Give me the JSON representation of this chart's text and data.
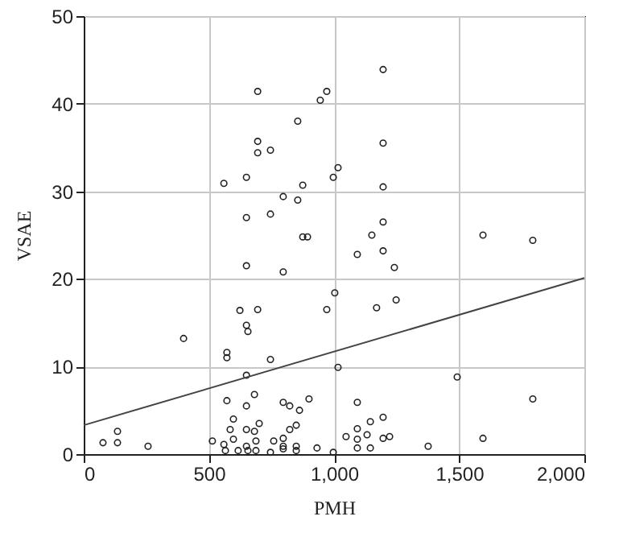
{
  "chart_data": {
    "type": "scatter",
    "xlabel": "PMH",
    "ylabel": "VSAE",
    "xlim": [
      0,
      2000
    ],
    "ylim": [
      0,
      50
    ],
    "xticks": [
      0,
      500,
      {
        "value": 1000,
        "label": "1,000"
      },
      {
        "value": 1500,
        "label": "1,500"
      },
      {
        "value": 2000,
        "label": "2,000"
      }
    ],
    "yticks": [
      0,
      10,
      20,
      30,
      40,
      50
    ],
    "grid": true,
    "series": [
      {
        "marker": "circle",
        "color": "#222222",
        "x": [
          695,
          971,
          945,
          855,
          695,
          695,
          746,
          997,
          1016,
          650,
          560,
          875,
          797,
          855,
          650,
          746,
          875,
          894,
          1196,
          1196,
          1196,
          1196,
          1151,
          1595,
          1794,
          650,
          797,
          1003,
          971,
          624,
          695,
          650,
          656,
          399,
          572,
          572,
          746,
          1016,
          650,
          572,
          682,
          650,
          797,
          823,
          862,
          900,
          598,
          701,
          849,
          823,
          585,
          650,
          682,
          135,
          77,
          135,
          257,
          514,
          560,
          598,
          650,
          688,
          759,
          797,
          797,
          849,
          932,
          997,
          566,
          617,
          656,
          688,
          746,
          797,
          849,
          1093,
          1196,
          1241,
          1248,
          1170,
          1492,
          1093,
          1794,
          1196,
          1145,
          1093,
          1048,
          1132,
          1196,
          1222,
          1093,
          1595,
          1376,
          1093,
          1145
        ],
        "values": [
          41.4,
          41.4,
          40.4,
          38.0,
          35.7,
          34.4,
          34.7,
          31.6,
          32.7,
          31.6,
          30.9,
          30.7,
          29.4,
          29.0,
          27.0,
          27.4,
          24.8,
          24.8,
          43.9,
          35.5,
          30.5,
          26.5,
          25.0,
          25.0,
          24.4,
          21.5,
          20.8,
          18.4,
          16.5,
          16.4,
          16.5,
          14.7,
          14.0,
          13.2,
          11.6,
          11.0,
          10.8,
          9.9,
          9.0,
          6.1,
          6.8,
          5.5,
          5.9,
          5.5,
          5.0,
          6.3,
          4.0,
          3.5,
          3.3,
          2.8,
          2.8,
          2.8,
          2.6,
          2.6,
          1.3,
          1.3,
          0.9,
          1.5,
          1.1,
          1.7,
          0.9,
          1.5,
          1.5,
          1.8,
          0.9,
          0.9,
          0.7,
          0.2,
          0.4,
          0.4,
          0.4,
          0.4,
          0.2,
          0.6,
          0.4,
          22.8,
          23.2,
          21.3,
          17.6,
          16.7,
          8.8,
          5.9,
          6.3,
          4.2,
          3.7,
          2.9,
          2.0,
          2.2,
          1.8,
          2.0,
          1.7,
          1.8,
          0.9,
          0.7,
          0.7
        ]
      },
      {
        "type": "line",
        "color": "#444444",
        "x": [
          0,
          2000
        ],
        "values": [
          3.3,
          20.1
        ]
      }
    ]
  }
}
